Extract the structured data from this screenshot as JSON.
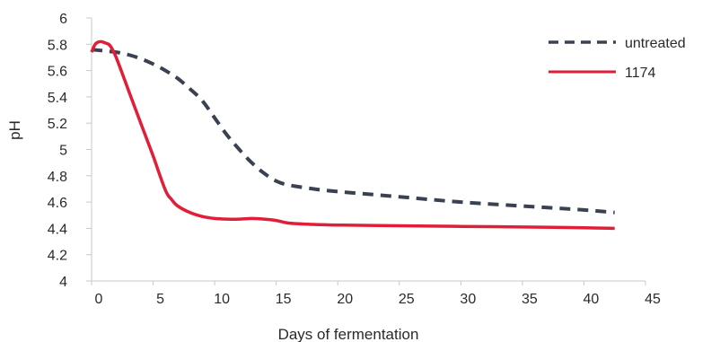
{
  "chart_data": {
    "type": "line",
    "title": "",
    "xlabel": "Days of fermentation",
    "ylabel": "pH",
    "xlim": [
      0,
      45
    ],
    "ylim": [
      4,
      6
    ],
    "x_ticks": [
      0,
      5,
      10,
      15,
      20,
      25,
      30,
      35,
      40,
      45
    ],
    "y_ticks": [
      4,
      4.2,
      4.4,
      4.6,
      4.8,
      5,
      5.2,
      5.4,
      5.6,
      5.8,
      6
    ],
    "x_tick_labels": [
      "0",
      "5",
      "10",
      "15",
      "20",
      "25",
      "30",
      "35",
      "40",
      "45"
    ],
    "y_tick_labels": [
      "4",
      "4.2",
      "4.4",
      "4.6",
      "4.8",
      "5",
      "5.2",
      "5.4",
      "5.6",
      "5.8",
      "6"
    ],
    "grid": false,
    "legend_position": "top-right",
    "series": [
      {
        "name": "untreated",
        "color": "#3a4252",
        "style": "dashed",
        "x": [
          0,
          1,
          2,
          3,
          4,
          5,
          6,
          7,
          8,
          9,
          10,
          11,
          12,
          13,
          14,
          15,
          16,
          18,
          20,
          25,
          30,
          35,
          40,
          42.5
        ],
        "y": [
          5.76,
          5.75,
          5.74,
          5.72,
          5.69,
          5.65,
          5.6,
          5.54,
          5.46,
          5.37,
          5.24,
          5.11,
          5.0,
          4.9,
          4.82,
          4.76,
          4.73,
          4.7,
          4.68,
          4.64,
          4.6,
          4.57,
          4.54,
          4.52
        ]
      },
      {
        "name": "1174",
        "color": "#e01e37",
        "style": "solid",
        "x": [
          0,
          0.3,
          0.7,
          1.1,
          1.5,
          2,
          3,
          4,
          5,
          6,
          6.5,
          7,
          8,
          9,
          10,
          11,
          12,
          13,
          14,
          15,
          16,
          18,
          20,
          25,
          30,
          35,
          40,
          42.5
        ],
        "y": [
          5.74,
          5.8,
          5.82,
          5.81,
          5.79,
          5.7,
          5.45,
          5.2,
          4.95,
          4.69,
          4.62,
          4.57,
          4.52,
          4.49,
          4.475,
          4.47,
          4.47,
          4.475,
          4.47,
          4.46,
          4.44,
          4.43,
          4.425,
          4.42,
          4.415,
          4.41,
          4.405,
          4.4
        ]
      }
    ]
  }
}
